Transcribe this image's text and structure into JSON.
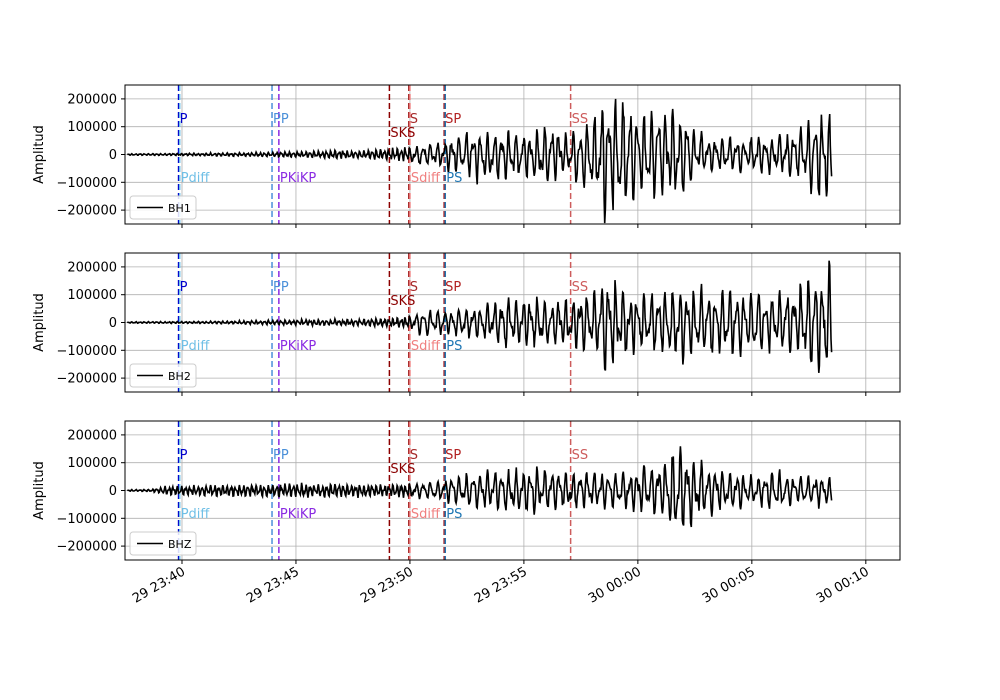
{
  "chart_data": {
    "type": "line",
    "ylabel": "Amplitud",
    "ylim": [
      -250000,
      250000
    ],
    "yticks": [
      200000,
      100000,
      0,
      -100000,
      -200000
    ],
    "ytick_labels": [
      "200000",
      "100000",
      "0",
      "−100000",
      "−200000"
    ],
    "xlim_minutes": [
      -22.5,
      11.5
    ],
    "xticks": [
      {
        "minute": -20,
        "label": "29 23:40"
      },
      {
        "minute": -15,
        "label": "29 23:45"
      },
      {
        "minute": -10,
        "label": "29 23:50"
      },
      {
        "minute": -5,
        "label": "29 23:55"
      },
      {
        "minute": 0,
        "label": "30 00:00"
      },
      {
        "minute": 5,
        "label": "30 00:05"
      },
      {
        "minute": 10,
        "label": "30 00:10"
      }
    ],
    "grid": true,
    "legend_position": "lower-left",
    "series_color": "#000000",
    "phases": [
      {
        "name": "P",
        "minute": -20.15,
        "color": "#0000cc",
        "label_pos": "upper"
      },
      {
        "name": "Pdiff",
        "minute": -20.1,
        "color": "#6fbfe6",
        "label_pos": "lower"
      },
      {
        "name": "PP",
        "minute": -16.05,
        "color": "#4a90d9",
        "label_pos": "upper"
      },
      {
        "name": "PKiKP",
        "minute": -15.75,
        "color": "#8a2be2",
        "label_pos": "lower"
      },
      {
        "name": "SKS",
        "minute": -10.9,
        "color": "#8b0000",
        "label_pos": "mid"
      },
      {
        "name": "S",
        "minute": -10.05,
        "color": "#a52a2a",
        "label_pos": "upper"
      },
      {
        "name": "Sdiff",
        "minute": -10.0,
        "color": "#f08080",
        "label_pos": "lower"
      },
      {
        "name": "SP",
        "minute": -8.5,
        "color": "#b22222",
        "label_pos": "upper"
      },
      {
        "name": "PS",
        "minute": -8.45,
        "color": "#1f77b4",
        "label_pos": "lower"
      },
      {
        "name": "SS",
        "minute": -2.95,
        "color": "#cd5c5c",
        "label_pos": "upper"
      }
    ],
    "traces": [
      {
        "name": "BH1",
        "t_start": -22.4,
        "t_end": 8.5,
        "envelope": [
          [
            -22.4,
            3000
          ],
          [
            -19,
            6000
          ],
          [
            -17,
            8000
          ],
          [
            -15,
            12000
          ],
          [
            -13,
            18000
          ],
          [
            -11,
            22000
          ],
          [
            -10.2,
            35000
          ],
          [
            -9,
            45000
          ],
          [
            -8.5,
            60000
          ],
          [
            -7,
            110000
          ],
          [
            -5,
            95000
          ],
          [
            -4,
            120000
          ],
          [
            -3,
            100000
          ],
          [
            -2,
            160000
          ],
          [
            -1.5,
            250000
          ],
          [
            0,
            190000
          ],
          [
            1,
            180000
          ],
          [
            2,
            170000
          ],
          [
            3,
            70000
          ],
          [
            5,
            70000
          ],
          [
            6,
            80000
          ],
          [
            7,
            100000
          ],
          [
            8,
            200000
          ],
          [
            8.5,
            180000
          ]
        ]
      },
      {
        "name": "BH2",
        "t_start": -22.4,
        "t_end": 8.5,
        "envelope": [
          [
            -22.4,
            3000
          ],
          [
            -19,
            5000
          ],
          [
            -17,
            8000
          ],
          [
            -15,
            12000
          ],
          [
            -13,
            15000
          ],
          [
            -11,
            18000
          ],
          [
            -10.2,
            25000
          ],
          [
            -9.5,
            50000
          ],
          [
            -8.5,
            55000
          ],
          [
            -7,
            70000
          ],
          [
            -5.5,
            110000
          ],
          [
            -4,
            95000
          ],
          [
            -3,
            110000
          ],
          [
            -2,
            120000
          ],
          [
            -1.5,
            200000
          ],
          [
            0,
            120000
          ],
          [
            1,
            120000
          ],
          [
            2,
            180000
          ],
          [
            3,
            130000
          ],
          [
            5,
            140000
          ],
          [
            6,
            110000
          ],
          [
            7,
            150000
          ],
          [
            7.8,
            240000
          ],
          [
            8.5,
            250000
          ]
        ]
      },
      {
        "name": "BHZ",
        "t_start": -22.4,
        "t_end": 8.5,
        "envelope": [
          [
            -22.4,
            3000
          ],
          [
            -21.5,
            5000
          ],
          [
            -20.5,
            20000
          ],
          [
            -18,
            25000
          ],
          [
            -15,
            28000
          ],
          [
            -13,
            30000
          ],
          [
            -11,
            25000
          ],
          [
            -10,
            30000
          ],
          [
            -8.5,
            45000
          ],
          [
            -7,
            80000
          ],
          [
            -5,
            90000
          ],
          [
            -4.5,
            100000
          ],
          [
            -3,
            75000
          ],
          [
            -1,
            75000
          ],
          [
            0,
            95000
          ],
          [
            1,
            100000
          ],
          [
            1.8,
            190000
          ],
          [
            3,
            100000
          ],
          [
            5,
            60000
          ],
          [
            6,
            80000
          ],
          [
            7,
            60000
          ],
          [
            8,
            65000
          ],
          [
            8.5,
            60000
          ]
        ]
      }
    ]
  }
}
